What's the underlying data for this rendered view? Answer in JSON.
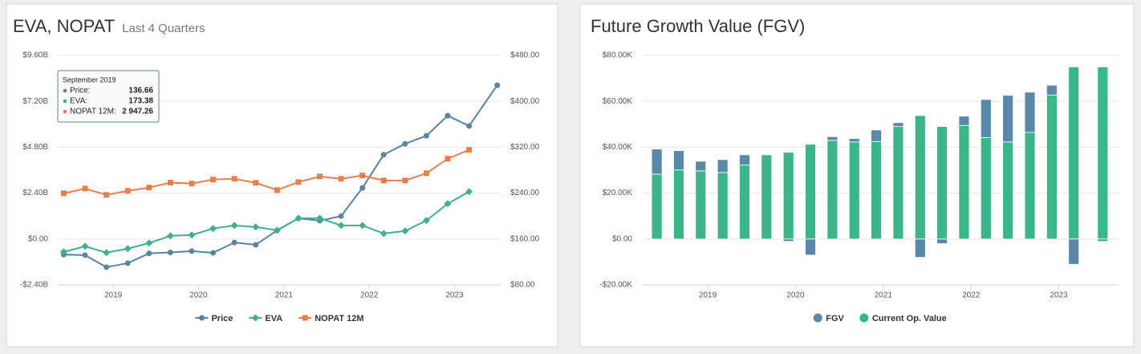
{
  "chart_data": [
    {
      "type": "line",
      "title": "EVA, NOPAT",
      "subtitle": "Last 4 Quarters",
      "x": [
        2018.42,
        2018.67,
        2018.92,
        2019.17,
        2019.42,
        2019.67,
        2019.92,
        2020.17,
        2020.42,
        2020.67,
        2020.92,
        2021.17,
        2021.42,
        2021.67,
        2021.92,
        2022.17,
        2022.42,
        2022.67,
        2022.92,
        2023.17,
        2023.5
      ],
      "xlim": [
        2018.35,
        2023.55
      ],
      "xticks": [
        2019,
        2020,
        2021,
        2022,
        2023
      ],
      "ylim": [
        -2.4,
        9.6
      ],
      "yticks": [
        {
          "value": -2.4,
          "label": "-$2.40B"
        },
        {
          "value": 0,
          "label": "$0.00"
        },
        {
          "value": 2.4,
          "label": "$2.40B"
        },
        {
          "value": 4.8,
          "label": "$4.80B"
        },
        {
          "value": 7.2,
          "label": "$7.20B"
        },
        {
          "value": 9.6,
          "label": "$9.60B"
        }
      ],
      "y2lim": [
        80,
        480
      ],
      "y2ticks": [
        {
          "value": 80,
          "label": "$80.00"
        },
        {
          "value": 160,
          "label": "$160.00"
        },
        {
          "value": 240,
          "label": "$240.00"
        },
        {
          "value": 320,
          "label": "$320.00"
        },
        {
          "value": 400,
          "label": "$400.00"
        },
        {
          "value": 480,
          "label": "$480.00"
        }
      ],
      "grid": true,
      "series": [
        {
          "name": "Price",
          "color": "#5b84a3",
          "marker": "circle",
          "axis": "y2",
          "values": [
            133,
            132,
            111,
            118,
            135,
            136.66,
            139,
            136,
            154,
            150,
            175,
            196,
            192,
            200,
            249,
            307,
            326,
            340,
            375,
            357,
            428
          ]
        },
        {
          "name": "EVA",
          "color": "#41b08a",
          "marker": "diamond",
          "values": [
            -0.67,
            -0.38,
            -0.71,
            -0.5,
            -0.21,
            0.17,
            0.21,
            0.55,
            0.71,
            0.63,
            0.46,
            1.09,
            1.09,
            0.71,
            0.71,
            0.29,
            0.42,
            0.97,
            1.85,
            2.48,
            null
          ]
        },
        {
          "name": "NOPAT 12M",
          "color": "#e5804d",
          "marker": "square",
          "values": [
            2.39,
            2.64,
            2.31,
            2.52,
            2.69,
            2.95,
            2.9,
            3.11,
            3.15,
            2.94,
            2.56,
            2.98,
            3.27,
            3.15,
            3.32,
            3.06,
            3.06,
            3.44,
            4.2,
            4.66,
            null
          ]
        }
      ],
      "tooltip": {
        "title": "September 2019",
        "rows": [
          {
            "name": "Price:",
            "value": "136.66"
          },
          {
            "name": "EVA:",
            "value": "173.38"
          },
          {
            "name": "NOPAT 12M:",
            "value": "2 947.26"
          }
        ]
      }
    },
    {
      "type": "bar",
      "title": "Future Growth Value (FGV)",
      "stacked": true,
      "x": [
        2018.42,
        2018.67,
        2018.92,
        2019.17,
        2019.42,
        2019.67,
        2019.92,
        2020.17,
        2020.42,
        2020.67,
        2020.92,
        2021.17,
        2021.42,
        2021.67,
        2021.92,
        2022.17,
        2022.42,
        2022.67,
        2022.92,
        2023.17,
        2023.5
      ],
      "xlim": [
        2018.25,
        2023.68
      ],
      "xticks": [
        2019,
        2020,
        2021,
        2022,
        2023
      ],
      "ylim": [
        -20,
        80
      ],
      "yticks": [
        {
          "value": -20,
          "label": "-$20.00K"
        },
        {
          "value": 0,
          "label": "$0.00"
        },
        {
          "value": 20,
          "label": "$20.00K"
        },
        {
          "value": 40,
          "label": "$40.00K"
        },
        {
          "value": 60,
          "label": "$60.00K"
        },
        {
          "value": 80,
          "label": "$80.00K"
        }
      ],
      "grid": true,
      "series": [
        {
          "name": "FGV",
          "color": "#5a88a8",
          "values": [
            10.9,
            8.4,
            4.2,
            5.6,
            4.5,
            0,
            -1,
            -7,
            1.6,
            1.5,
            5,
            1.7,
            -8,
            -2,
            4,
            16.6,
            20.3,
            17.5,
            4.3,
            -11,
            -1
          ]
        },
        {
          "name": "Current Op. Value",
          "color": "#3db58a",
          "values": [
            28.3,
            30.1,
            29.7,
            29,
            32.2,
            36.7,
            37.8,
            41.3,
            43,
            42.3,
            42.5,
            49,
            53.8,
            49,
            49.5,
            44.2,
            42.3,
            46.5,
            62.7,
            75,
            75
          ]
        }
      ]
    }
  ]
}
